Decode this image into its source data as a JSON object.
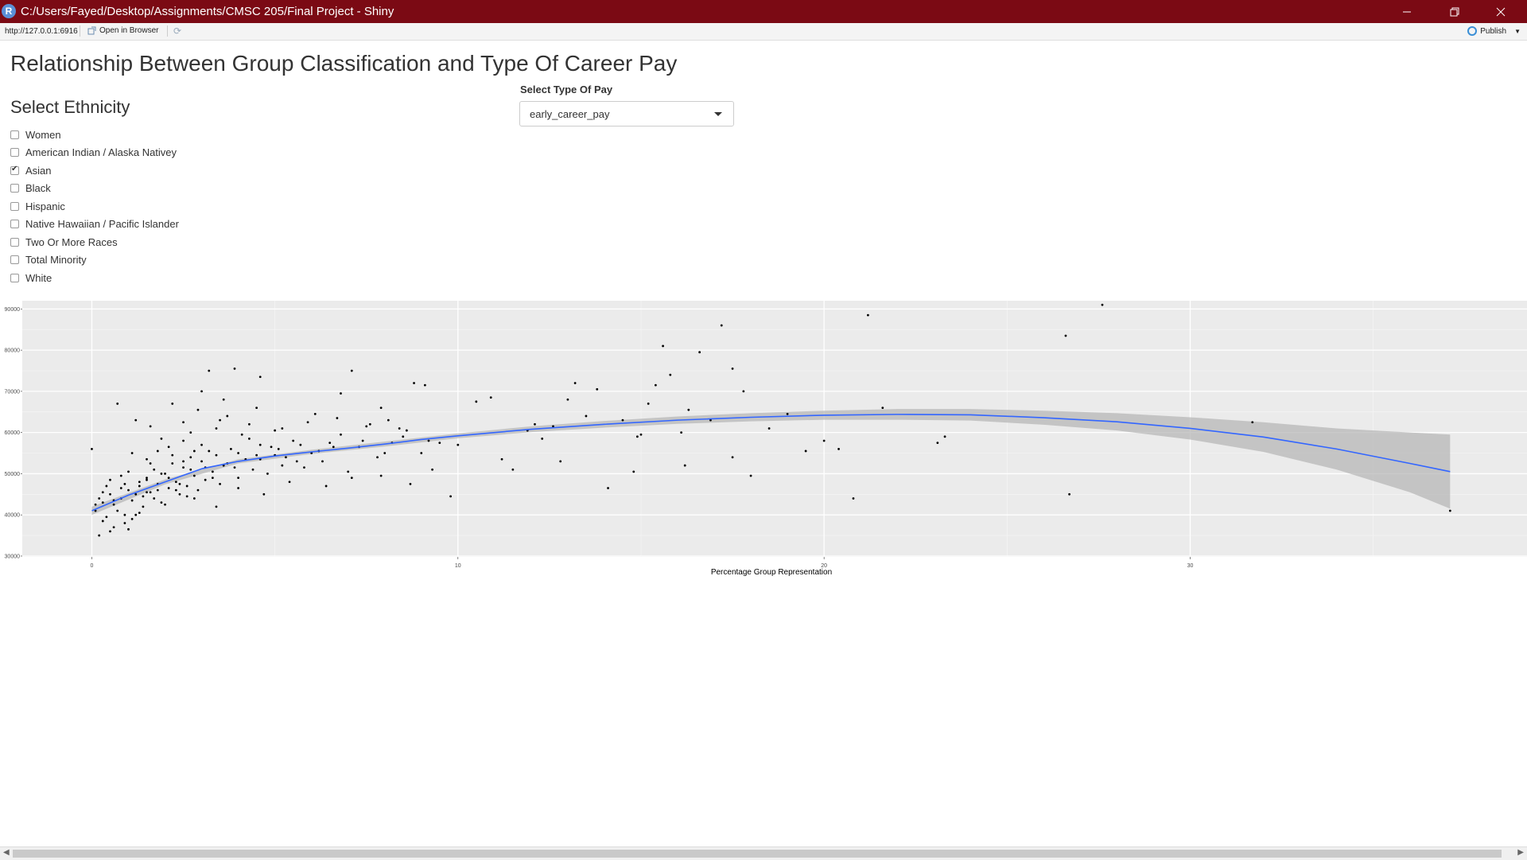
{
  "window": {
    "title": "C:/Users/Fayed/Desktop/Assignments/CMSC 205/Final Project - Shiny",
    "app_icon": "R",
    "controls": [
      "minimize-icon",
      "restore-icon",
      "close-icon"
    ]
  },
  "toolbar": {
    "url": "http://127.0.0.1:6916",
    "open_browser_label": "Open in Browser",
    "publish_label": "Publish"
  },
  "page": {
    "title": "Relationship Between Group Classification and Type Of Career Pay",
    "ethnicity_heading": "Select Ethnicity",
    "ethnicity_options": [
      {
        "label": "Women",
        "checked": false
      },
      {
        "label": "American Indian / Alaska Nativey",
        "checked": false
      },
      {
        "label": "Asian",
        "checked": true
      },
      {
        "label": "Black",
        "checked": false
      },
      {
        "label": "Hispanic",
        "checked": false
      },
      {
        "label": "Native Hawaiian / Pacific Islander",
        "checked": false
      },
      {
        "label": "Two Or More Races",
        "checked": false
      },
      {
        "label": "Total Minority",
        "checked": false
      },
      {
        "label": "White",
        "checked": false
      }
    ],
    "pay_label": "Select Type Of Pay",
    "pay_selected": "early_career_pay"
  },
  "chart_data": {
    "type": "scatter",
    "title": "",
    "xlabel": "Percentage Group Representation",
    "ylabel": "",
    "xlim": [
      -1.9,
      39.2
    ],
    "ylim": [
      29800,
      92000
    ],
    "x_ticks": [
      0,
      10,
      20,
      30
    ],
    "y_ticks": [
      30000,
      40000,
      50000,
      60000,
      70000,
      80000,
      90000
    ],
    "grid": true,
    "background": "#ebebeb",
    "point_color": "#000000",
    "smooth_color": "#3366ff",
    "ribbon_color": "#b4b4b4",
    "points": [
      [
        0.1,
        41000
      ],
      [
        0.3,
        43000
      ],
      [
        0.4,
        39500
      ],
      [
        0.5,
        45000
      ],
      [
        0.6,
        42500
      ],
      [
        0.7,
        41000
      ],
      [
        0.8,
        44000
      ],
      [
        0.9,
        38000
      ],
      [
        1.0,
        46000
      ],
      [
        1.1,
        43500
      ],
      [
        1.2,
        40000
      ],
      [
        1.3,
        47000
      ],
      [
        1.4,
        44500
      ],
      [
        1.5,
        49000
      ],
      [
        1.6,
        45500
      ],
      [
        1.7,
        51000
      ],
      [
        1.8,
        47500
      ],
      [
        1.9,
        43000
      ],
      [
        2.0,
        50000
      ],
      [
        2.1,
        46500
      ],
      [
        2.2,
        52500
      ],
      [
        2.3,
        48000
      ],
      [
        2.4,
        45000
      ],
      [
        2.5,
        51500
      ],
      [
        2.6,
        47000
      ],
      [
        2.7,
        54000
      ],
      [
        2.8,
        49500
      ],
      [
        2.9,
        46000
      ],
      [
        3.0,
        53000
      ],
      [
        3.1,
        48500
      ],
      [
        3.2,
        55500
      ],
      [
        3.3,
        50500
      ],
      [
        3.5,
        47500
      ],
      [
        3.6,
        52000
      ],
      [
        3.8,
        56000
      ],
      [
        4.0,
        49000
      ],
      [
        4.2,
        53500
      ],
      [
        4.4,
        51000
      ],
      [
        4.6,
        57000
      ],
      [
        4.8,
        50000
      ],
      [
        5.0,
        54500
      ],
      [
        5.2,
        52000
      ],
      [
        5.5,
        58000
      ],
      [
        5.8,
        51500
      ],
      [
        6.0,
        55000
      ],
      [
        6.3,
        53000
      ],
      [
        6.6,
        56500
      ],
      [
        7.0,
        50500
      ],
      [
        7.4,
        58000
      ],
      [
        7.8,
        54000
      ],
      [
        8.2,
        57500
      ],
      [
        8.6,
        60500
      ],
      [
        9.0,
        55000
      ],
      [
        0.2,
        35000
      ],
      [
        0.6,
        37000
      ],
      [
        1.0,
        36500
      ],
      [
        1.3,
        40500
      ],
      [
        0.4,
        47000
      ],
      [
        0.8,
        49500
      ],
      [
        1.5,
        53500
      ],
      [
        1.8,
        55500
      ],
      [
        2.1,
        56500
      ],
      [
        2.5,
        58000
      ],
      [
        3.0,
        57000
      ],
      [
        3.4,
        61000
      ],
      [
        3.7,
        64000
      ],
      [
        4.1,
        59500
      ],
      [
        4.5,
        66000
      ],
      [
        5.2,
        61000
      ],
      [
        6.1,
        64500
      ],
      [
        6.8,
        59500
      ],
      [
        7.5,
        61500
      ],
      [
        8.1,
        63000
      ],
      [
        9.5,
        57500
      ],
      [
        1.6,
        61500
      ],
      [
        2.2,
        67000
      ],
      [
        2.9,
        65500
      ],
      [
        3.6,
        68000
      ],
      [
        0.0,
        56000
      ],
      [
        1.5,
        45500
      ],
      [
        2.8,
        44000
      ],
      [
        3.4,
        42000
      ],
      [
        4.0,
        46500
      ],
      [
        4.7,
        45000
      ],
      [
        5.4,
        48000
      ],
      [
        6.4,
        47000
      ],
      [
        7.1,
        49000
      ],
      [
        7.9,
        49500
      ],
      [
        8.7,
        47500
      ],
      [
        9.3,
        51000
      ],
      [
        0.7,
        67000
      ],
      [
        1.2,
        63000
      ],
      [
        2.5,
        62500
      ],
      [
        3.2,
        75000
      ],
      [
        3.9,
        75500
      ],
      [
        4.6,
        73500
      ],
      [
        7.1,
        75000
      ],
      [
        7.9,
        66000
      ],
      [
        6.8,
        69500
      ],
      [
        3.0,
        70000
      ],
      [
        8.8,
        72000
      ],
      [
        9.1,
        71500
      ],
      [
        10.5,
        67500
      ],
      [
        10.9,
        68500
      ],
      [
        11.2,
        53500
      ],
      [
        11.5,
        51000
      ],
      [
        11.9,
        60500
      ],
      [
        12.3,
        58500
      ],
      [
        12.6,
        61500
      ],
      [
        12.8,
        53000
      ],
      [
        13.0,
        68000
      ],
      [
        13.2,
        72000
      ],
      [
        13.5,
        64000
      ],
      [
        13.8,
        70500
      ],
      [
        14.1,
        46500
      ],
      [
        14.5,
        63000
      ],
      [
        14.8,
        50500
      ],
      [
        15.0,
        59500
      ],
      [
        15.2,
        67000
      ],
      [
        15.4,
        71500
      ],
      [
        15.6,
        81000
      ],
      [
        15.8,
        74000
      ],
      [
        16.1,
        60000
      ],
      [
        16.3,
        65500
      ],
      [
        16.6,
        79500
      ],
      [
        16.9,
        63000
      ],
      [
        17.2,
        86000
      ],
      [
        17.5,
        75500
      ],
      [
        17.8,
        70000
      ],
      [
        18.0,
        49500
      ],
      [
        18.5,
        61000
      ],
      [
        19.0,
        64500
      ],
      [
        19.5,
        55500
      ],
      [
        20.0,
        58000
      ],
      [
        20.4,
        56000
      ],
      [
        20.8,
        44000
      ],
      [
        21.2,
        88500
      ],
      [
        21.6,
        66000
      ],
      [
        23.1,
        57500
      ],
      [
        23.3,
        59000
      ],
      [
        26.6,
        83500
      ],
      [
        26.7,
        45000
      ],
      [
        27.6,
        91000
      ],
      [
        31.7,
        62500
      ],
      [
        37.1,
        41000
      ],
      [
        10.0,
        57000
      ],
      [
        9.8,
        44500
      ],
      [
        12.1,
        62000
      ],
      [
        14.9,
        59000
      ],
      [
        17.5,
        54000
      ],
      [
        16.2,
        52000
      ],
      [
        0.3,
        38500
      ],
      [
        0.5,
        36000
      ],
      [
        0.9,
        40000
      ],
      [
        1.1,
        39000
      ],
      [
        1.4,
        42000
      ],
      [
        1.7,
        44000
      ],
      [
        2.0,
        42500
      ],
      [
        2.3,
        46000
      ],
      [
        2.6,
        44500
      ],
      [
        0.2,
        44000
      ],
      [
        0.5,
        48500
      ],
      [
        0.8,
        46500
      ],
      [
        1.0,
        50500
      ],
      [
        1.3,
        48000
      ],
      [
        1.6,
        52500
      ],
      [
        1.9,
        50000
      ],
      [
        2.2,
        54500
      ],
      [
        2.5,
        53000
      ],
      [
        2.8,
        55500
      ],
      [
        3.1,
        51500
      ],
      [
        3.4,
        54500
      ],
      [
        3.7,
        52500
      ],
      [
        4.0,
        55000
      ],
      [
        4.3,
        58500
      ],
      [
        4.6,
        53500
      ],
      [
        4.9,
        56500
      ],
      [
        5.3,
        54000
      ],
      [
        5.7,
        57000
      ],
      [
        6.2,
        55500
      ],
      [
        0.1,
        42500
      ],
      [
        0.3,
        45500
      ],
      [
        0.6,
        43500
      ],
      [
        0.9,
        47500
      ],
      [
        1.2,
        45000
      ],
      [
        1.5,
        48500
      ],
      [
        1.8,
        46000
      ],
      [
        2.1,
        49000
      ],
      [
        2.4,
        47500
      ],
      [
        2.7,
        51000
      ],
      [
        3.3,
        49000
      ],
      [
        3.9,
        51500
      ],
      [
        4.5,
        54500
      ],
      [
        5.1,
        56000
      ],
      [
        5.6,
        53000
      ],
      [
        6.5,
        57500
      ],
      [
        7.3,
        56500
      ],
      [
        8.0,
        55000
      ],
      [
        8.5,
        59000
      ],
      [
        9.2,
        58000
      ],
      [
        1.1,
        55000
      ],
      [
        1.9,
        58500
      ],
      [
        2.7,
        60000
      ],
      [
        3.5,
        63000
      ],
      [
        4.3,
        62000
      ],
      [
        5.0,
        60500
      ],
      [
        5.9,
        62500
      ],
      [
        6.7,
        63500
      ],
      [
        7.6,
        62000
      ],
      [
        8.4,
        61000
      ]
    ],
    "smooth_line": [
      [
        0.0,
        41000
      ],
      [
        1.0,
        44800
      ],
      [
        2.0,
        48000
      ],
      [
        3.0,
        51200
      ],
      [
        4.0,
        53000
      ],
      [
        5.0,
        54300
      ],
      [
        6.0,
        55300
      ],
      [
        7.0,
        56200
      ],
      [
        8.0,
        57200
      ],
      [
        9.0,
        58300
      ],
      [
        10.0,
        59200
      ],
      [
        12.0,
        60800
      ],
      [
        14.0,
        62000
      ],
      [
        16.0,
        63000
      ],
      [
        18.0,
        63700
      ],
      [
        20.0,
        64200
      ],
      [
        22.0,
        64400
      ],
      [
        24.0,
        64300
      ],
      [
        26.0,
        63600
      ],
      [
        28.0,
        62600
      ],
      [
        30.0,
        61000
      ],
      [
        32.0,
        58900
      ],
      [
        34.0,
        56000
      ],
      [
        36.0,
        52500
      ],
      [
        37.1,
        50500
      ]
    ],
    "ribbon": [
      [
        0.0,
        42000,
        40000
      ],
      [
        2.0,
        48600,
        47400
      ],
      [
        4.0,
        53500,
        52500
      ],
      [
        6.0,
        55800,
        54800
      ],
      [
        8.0,
        57800,
        56600
      ],
      [
        10.0,
        59800,
        58600
      ],
      [
        12.0,
        61500,
        60100
      ],
      [
        14.0,
        62800,
        61200
      ],
      [
        16.0,
        63900,
        62100
      ],
      [
        18.0,
        64700,
        62700
      ],
      [
        20.0,
        65300,
        63100
      ],
      [
        22.0,
        65700,
        63100
      ],
      [
        24.0,
        65700,
        62900
      ],
      [
        26.0,
        65300,
        61900
      ],
      [
        28.0,
        64700,
        60500
      ],
      [
        30.0,
        63700,
        58300
      ],
      [
        32.0,
        62500,
        55300
      ],
      [
        34.0,
        61000,
        51000
      ],
      [
        36.0,
        60000,
        45500
      ],
      [
        37.1,
        59500,
        41500
      ]
    ]
  }
}
